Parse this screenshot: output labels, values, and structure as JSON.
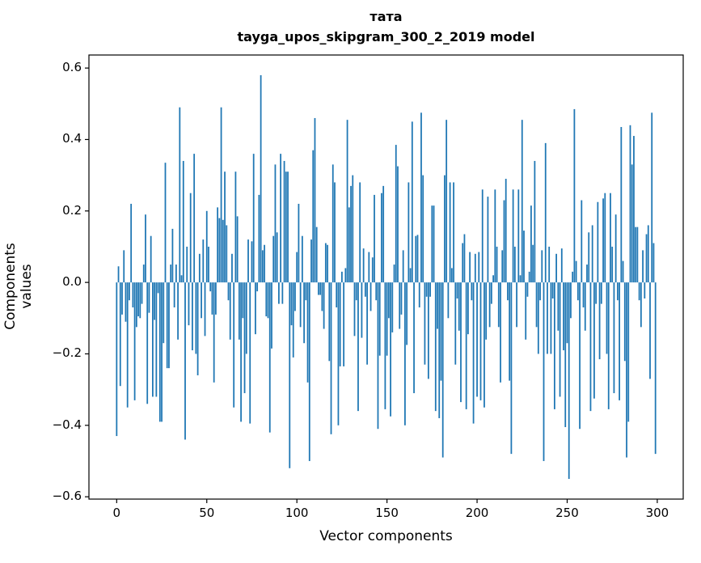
{
  "chart_data": {
    "type": "bar",
    "title": "тата",
    "subtitle": "tayga_upos_skipgram_300_2_2019 model",
    "xlabel": "Vector components",
    "ylabel": "Components values",
    "bar_color": "#1f77b4",
    "axis_color": "#000000",
    "background_color": "#ffffff",
    "bar_width": 0.8,
    "grid": false,
    "legend": "none",
    "xlim": [
      -15.4,
      314.4
    ],
    "ylim": [
      -0.6065,
      0.6365
    ],
    "xticks": [
      0,
      50,
      100,
      150,
      200,
      250,
      300
    ],
    "xtick_labels": [
      "0",
      "50",
      "100",
      "150",
      "200",
      "250",
      "300"
    ],
    "yticks": [
      0.6,
      0.4,
      0.2,
      0.0,
      -0.2,
      -0.4,
      -0.6
    ],
    "ytick_labels": [
      "0.6",
      "0.4",
      "0.2",
      "0.0",
      "−0.2",
      "−0.4",
      "−0.6"
    ],
    "x": "component index 0..299",
    "values": [
      -0.43,
      0.045,
      -0.29,
      -0.09,
      0.09,
      -0.11,
      -0.35,
      -0.05,
      0.22,
      -0.07,
      -0.33,
      -0.125,
      -0.095,
      -0.1,
      -0.06,
      0.05,
      0.19,
      -0.34,
      -0.085,
      0.13,
      -0.32,
      -0.105,
      -0.32,
      -0.03,
      -0.39,
      -0.39,
      -0.17,
      0.335,
      -0.24,
      -0.24,
      0.05,
      0.15,
      -0.07,
      0.05,
      -0.16,
      0.49,
      0.02,
      0.34,
      -0.44,
      0.1,
      -0.12,
      0.25,
      -0.19,
      0.36,
      -0.2,
      -0.26,
      0.08,
      -0.1,
      0.12,
      -0.15,
      0.2,
      0.1,
      -0.025,
      -0.09,
      -0.28,
      -0.09,
      0.21,
      0.18,
      0.49,
      0.175,
      0.31,
      0.16,
      -0.05,
      -0.16,
      0.08,
      -0.35,
      0.31,
      0.185,
      -0.16,
      -0.39,
      -0.1,
      -0.31,
      -0.2,
      0.12,
      -0.395,
      0.115,
      0.36,
      -0.145,
      -0.025,
      0.245,
      0.58,
      0.09,
      0.105,
      -0.095,
      -0.1,
      -0.42,
      -0.185,
      0.13,
      0.33,
      0.14,
      -0.06,
      0.36,
      -0.06,
      0.34,
      0.31,
      0.31,
      -0.52,
      -0.12,
      -0.21,
      -0.08,
      0.085,
      0.22,
      -0.125,
      0.13,
      -0.17,
      -0.05,
      -0.28,
      -0.5,
      0.12,
      0.37,
      0.46,
      0.155,
      -0.035,
      -0.035,
      -0.08,
      -0.13,
      0.11,
      0.105,
      -0.22,
      -0.425,
      0.33,
      0.28,
      -0.07,
      -0.4,
      -0.235,
      0.03,
      -0.235,
      0.04,
      0.455,
      0.21,
      0.27,
      0.3,
      -0.15,
      -0.05,
      -0.36,
      0.28,
      -0.155,
      0.095,
      -0.04,
      -0.23,
      0.085,
      -0.08,
      0.07,
      0.245,
      -0.05,
      -0.41,
      -0.205,
      0.25,
      0.27,
      -0.355,
      -0.205,
      -0.1,
      -0.375,
      -0.14,
      0.05,
      0.385,
      0.325,
      -0.13,
      -0.09,
      0.09,
      -0.4,
      -0.175,
      0.28,
      0.04,
      0.45,
      -0.31,
      0.13,
      0.133,
      -0.07,
      0.475,
      0.3,
      -0.23,
      -0.04,
      -0.27,
      -0.04,
      0.215,
      0.215,
      -0.36,
      -0.13,
      -0.38,
      -0.275,
      -0.49,
      0.3,
      0.455,
      -0.1,
      0.28,
      0.04,
      0.28,
      -0.23,
      -0.045,
      -0.135,
      -0.335,
      0.11,
      0.135,
      -0.355,
      -0.145,
      0.085,
      -0.05,
      -0.395,
      0.08,
      -0.32,
      0.085,
      -0.33,
      0.26,
      -0.35,
      -0.16,
      0.24,
      -0.125,
      -0.06,
      0.02,
      0.26,
      0.1,
      -0.125,
      -0.28,
      0.09,
      0.23,
      0.29,
      -0.05,
      -0.275,
      -0.48,
      0.26,
      0.1,
      -0.125,
      0.26,
      0.02,
      0.455,
      0.145,
      -0.16,
      -0.04,
      0.03,
      0.215,
      0.105,
      0.34,
      -0.125,
      -0.2,
      -0.05,
      0.09,
      -0.5,
      0.39,
      -0.2,
      0.1,
      -0.2,
      -0.045,
      -0.355,
      0.08,
      -0.135,
      -0.32,
      0.095,
      -0.19,
      -0.405,
      -0.17,
      -0.55,
      -0.1,
      0.03,
      0.485,
      0.06,
      -0.05,
      -0.41,
      0.23,
      -0.07,
      -0.135,
      0.05,
      0.14,
      -0.36,
      0.16,
      -0.325,
      -0.06,
      0.225,
      -0.215,
      -0.06,
      0.235,
      0.25,
      -0.2,
      -0.355,
      0.25,
      0.1,
      -0.31,
      0.19,
      -0.05,
      -0.33,
      0.435,
      0.06,
      -0.22,
      -0.49,
      -0.39,
      0.44,
      0.33,
      0.41,
      0.155,
      0.155,
      -0.05,
      -0.125,
      0.09,
      -0.045,
      0.135,
      0.16,
      -0.27,
      0.475,
      0.11,
      -0.48
    ]
  }
}
